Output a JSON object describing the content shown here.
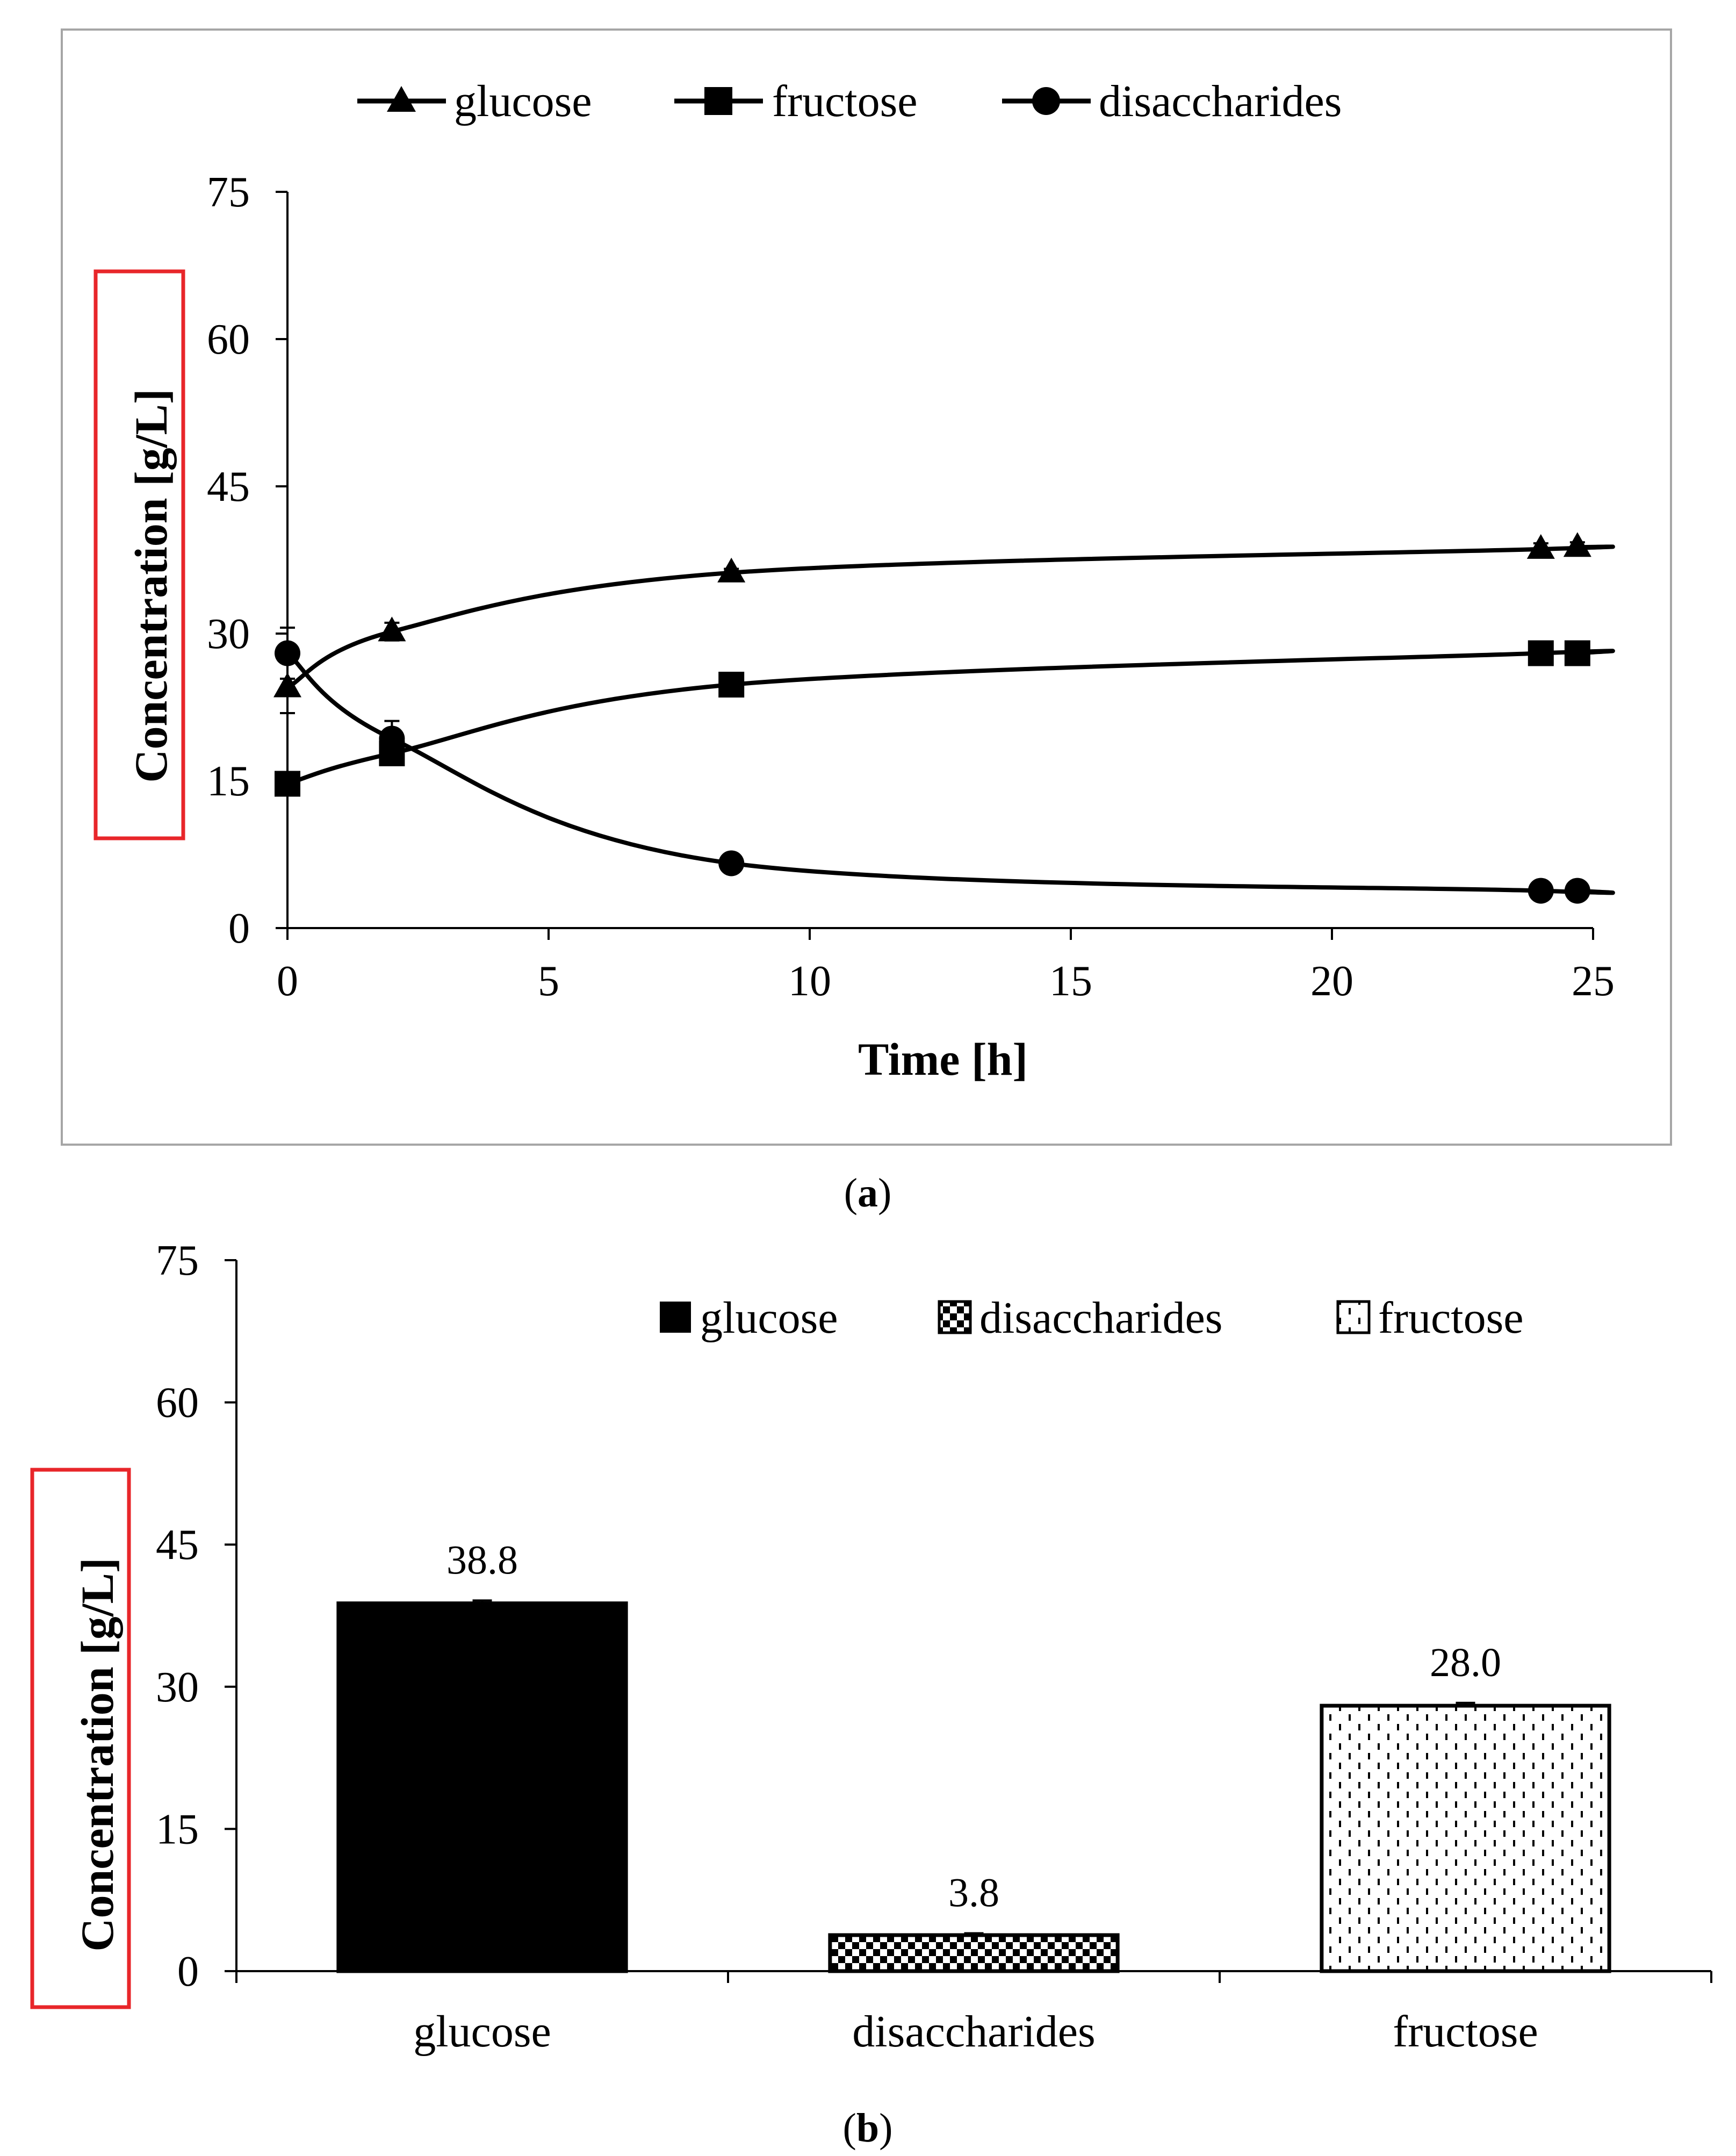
{
  "chart_data": [
    {
      "panel_label": "a",
      "type": "line",
      "xlabel": "Time [h]",
      "ylabel": "Concentration [g/L]",
      "xlim": [
        0,
        25
      ],
      "ylim": [
        0,
        75
      ],
      "xticks": [
        0,
        5,
        10,
        15,
        20,
        25
      ],
      "yticks": [
        0,
        15,
        30,
        45,
        60,
        75
      ],
      "grid": false,
      "legend_position": "top",
      "series": [
        {
          "name": "glucose",
          "marker": "triangle",
          "x": [
            0,
            2,
            8.5,
            24,
            24.7
          ],
          "y": [
            24.5,
            30.2,
            36.2,
            38.6,
            38.8
          ],
          "err": [
            2.6,
            0.9,
            0.4,
            0.6,
            0.5
          ]
        },
        {
          "name": "fructose",
          "marker": "square",
          "x": [
            0,
            2,
            8.5,
            24,
            24.7
          ],
          "y": [
            14.7,
            17.8,
            24.8,
            28.0,
            28.0
          ],
          "err": [
            0.3,
            0.6,
            0.4,
            0.4,
            0.4
          ]
        },
        {
          "name": "disaccharides",
          "marker": "circle",
          "x": [
            0,
            2,
            8.5,
            24,
            24.7
          ],
          "y": [
            28.0,
            19.3,
            6.6,
            3.8,
            3.8
          ],
          "err": [
            2.6,
            1.8,
            0.3,
            0.2,
            0.2
          ]
        }
      ]
    },
    {
      "panel_label": "b",
      "type": "bar",
      "ylabel": "Concentration [g/L]",
      "ylim": [
        0,
        75
      ],
      "yticks": [
        0,
        15,
        30,
        45,
        60,
        75
      ],
      "grid": false,
      "legend_position": "top-right",
      "categories": [
        "glucose",
        "disaccharides",
        "fructose"
      ],
      "values": [
        38.8,
        3.8,
        28.0
      ],
      "data_labels": [
        "38.8",
        "3.8",
        "28.0"
      ],
      "err": [
        0.3,
        0.2,
        0.3
      ],
      "patterns": [
        "solid",
        "checker",
        "dashes"
      ],
      "legend": [
        "glucose",
        "disaccharides",
        "fructose"
      ]
    }
  ],
  "colors": {
    "ink": "#000000",
    "frame": "#a6a6a6",
    "highlight": "#e8262a"
  }
}
